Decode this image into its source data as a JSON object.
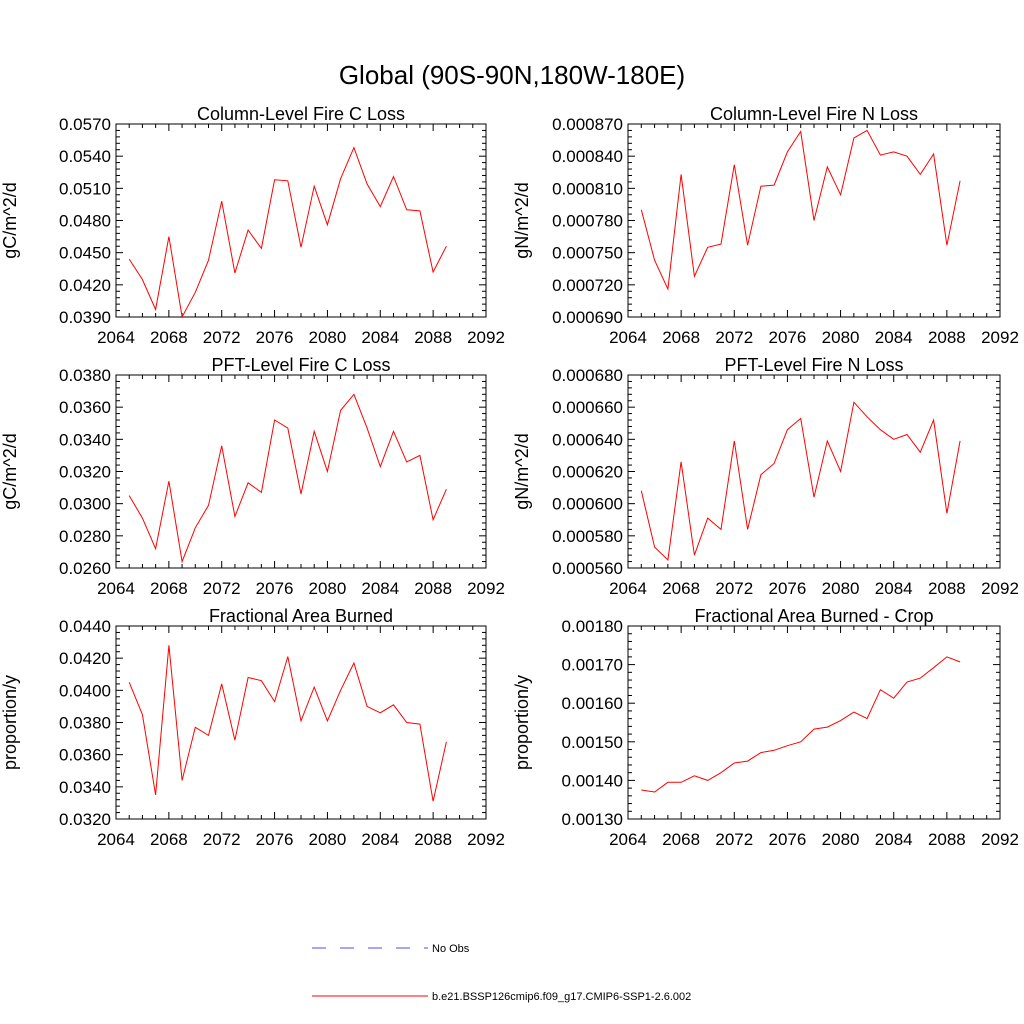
{
  "figure": {
    "title": "Global (90S-90N,180W-180E)"
  },
  "legend": {
    "items": [
      {
        "label": "No Obs",
        "color": "#4d4dff",
        "style": "dashed"
      },
      {
        "label": "b.e21.BSSP126cmip6.f09_g17.CMIP6-SSP1-2.6.002",
        "color": "#ff0000",
        "style": "solid"
      }
    ]
  },
  "chart_data": [
    {
      "type": "line",
      "title": "Column-Level Fire C Loss",
      "ylabel": "gC/m^2/d",
      "xlim": [
        2064,
        2092
      ],
      "xticks": [
        "2064",
        "2068",
        "2072",
        "2076",
        "2080",
        "2084",
        "2088",
        "2092"
      ],
      "ylim": [
        0.039,
        0.057
      ],
      "yticks": [
        "0.0390",
        "0.0420",
        "0.0450",
        "0.0480",
        "0.0510",
        "0.0540",
        "0.0570"
      ],
      "line_color": "#ff0000",
      "x": [
        2065,
        2066,
        2067,
        2068,
        2069,
        2070,
        2071,
        2072,
        2073,
        2074,
        2075,
        2076,
        2077,
        2078,
        2079,
        2080,
        2081,
        2082,
        2083,
        2084,
        2085,
        2086,
        2087,
        2088,
        2089
      ],
      "values": [
        0.0444,
        0.0425,
        0.0397,
        0.0465,
        0.039,
        0.0413,
        0.0443,
        0.0498,
        0.0431,
        0.0471,
        0.0454,
        0.0518,
        0.0517,
        0.0455,
        0.0512,
        0.0476,
        0.0519,
        0.0548,
        0.0514,
        0.0493,
        0.0521,
        0.049,
        0.0489,
        0.0432,
        0.0456
      ]
    },
    {
      "type": "line",
      "title": "Column-Level Fire N Loss",
      "ylabel": "gN/m^2/d",
      "xlim": [
        2064,
        2092
      ],
      "xticks": [
        "2064",
        "2068",
        "2072",
        "2076",
        "2080",
        "2084",
        "2088",
        "2092"
      ],
      "ylim": [
        0.00069,
        0.00087
      ],
      "yticks": [
        "0.000690",
        "0.000720",
        "0.000750",
        "0.000780",
        "0.000810",
        "0.000840",
        "0.000870"
      ],
      "line_color": "#ff0000",
      "x": [
        2065,
        2066,
        2067,
        2068,
        2069,
        2070,
        2071,
        2072,
        2073,
        2074,
        2075,
        2076,
        2077,
        2078,
        2079,
        2080,
        2081,
        2082,
        2083,
        2084,
        2085,
        2086,
        2087,
        2088,
        2089
      ],
      "values": [
        0.00079,
        0.000743,
        0.000716,
        0.000823,
        0.000728,
        0.000755,
        0.000758,
        0.000832,
        0.000757,
        0.000812,
        0.000813,
        0.000844,
        0.000863,
        0.00078,
        0.00083,
        0.000804,
        0.000857,
        0.000864,
        0.000841,
        0.000844,
        0.00084,
        0.000823,
        0.000842,
        0.000757,
        0.000817
      ]
    },
    {
      "type": "line",
      "title": "PFT-Level Fire C Loss",
      "ylabel": "gC/m^2/d",
      "xlim": [
        2064,
        2092
      ],
      "xticks": [
        "2064",
        "2068",
        "2072",
        "2076",
        "2080",
        "2084",
        "2088",
        "2092"
      ],
      "ylim": [
        0.026,
        0.038
      ],
      "yticks": [
        "0.0260",
        "0.0280",
        "0.0300",
        "0.0320",
        "0.0340",
        "0.0360",
        "0.0380"
      ],
      "line_color": "#ff0000",
      "x": [
        2065,
        2066,
        2067,
        2068,
        2069,
        2070,
        2071,
        2072,
        2073,
        2074,
        2075,
        2076,
        2077,
        2078,
        2079,
        2080,
        2081,
        2082,
        2083,
        2084,
        2085,
        2086,
        2087,
        2088,
        2089
      ],
      "values": [
        0.0305,
        0.0291,
        0.0272,
        0.0314,
        0.0264,
        0.0285,
        0.0299,
        0.0336,
        0.0292,
        0.0313,
        0.0307,
        0.0352,
        0.0347,
        0.0306,
        0.0345,
        0.032,
        0.0358,
        0.0368,
        0.0347,
        0.0323,
        0.0345,
        0.0326,
        0.033,
        0.029,
        0.0309
      ]
    },
    {
      "type": "line",
      "title": "PFT-Level Fire N Loss",
      "ylabel": "gN/m^2/d",
      "xlim": [
        2064,
        2092
      ],
      "xticks": [
        "2064",
        "2068",
        "2072",
        "2076",
        "2080",
        "2084",
        "2088",
        "2092"
      ],
      "ylim": [
        0.00056,
        0.00068
      ],
      "yticks": [
        "0.000560",
        "0.000580",
        "0.000600",
        "0.000620",
        "0.000640",
        "0.000660",
        "0.000680"
      ],
      "line_color": "#ff0000",
      "x": [
        2065,
        2066,
        2067,
        2068,
        2069,
        2070,
        2071,
        2072,
        2073,
        2074,
        2075,
        2076,
        2077,
        2078,
        2079,
        2080,
        2081,
        2082,
        2083,
        2084,
        2085,
        2086,
        2087,
        2088,
        2089
      ],
      "values": [
        0.000608,
        0.000573,
        0.000565,
        0.000626,
        0.000568,
        0.000591,
        0.000584,
        0.000639,
        0.000584,
        0.000618,
        0.000625,
        0.000646,
        0.000653,
        0.000604,
        0.000639,
        0.00062,
        0.000663,
        0.000654,
        0.000646,
        0.00064,
        0.000643,
        0.000632,
        0.000652,
        0.000594,
        0.000639
      ]
    },
    {
      "type": "line",
      "title": "Fractional Area Burned",
      "ylabel": "proportion/y",
      "xlim": [
        2064,
        2092
      ],
      "xticks": [
        "2064",
        "2068",
        "2072",
        "2076",
        "2080",
        "2084",
        "2088",
        "2092"
      ],
      "ylim": [
        0.032,
        0.044
      ],
      "yticks": [
        "0.0320",
        "0.0340",
        "0.0360",
        "0.0380",
        "0.0400",
        "0.0420",
        "0.0440"
      ],
      "line_color": "#ff0000",
      "x": [
        2065,
        2066,
        2067,
        2068,
        2069,
        2070,
        2071,
        2072,
        2073,
        2074,
        2075,
        2076,
        2077,
        2078,
        2079,
        2080,
        2081,
        2082,
        2083,
        2084,
        2085,
        2086,
        2087,
        2088,
        2089
      ],
      "values": [
        0.0405,
        0.0385,
        0.0335,
        0.0428,
        0.0344,
        0.0377,
        0.0372,
        0.0404,
        0.0369,
        0.0408,
        0.0406,
        0.0393,
        0.0421,
        0.0381,
        0.0402,
        0.0381,
        0.04,
        0.0417,
        0.039,
        0.0386,
        0.0391,
        0.038,
        0.0379,
        0.0331,
        0.0368
      ]
    },
    {
      "type": "line",
      "title": "Fractional Area Burned - Crop",
      "ylabel": "proportion/y",
      "xlim": [
        2064,
        2092
      ],
      "xticks": [
        "2064",
        "2068",
        "2072",
        "2076",
        "2080",
        "2084",
        "2088",
        "2092"
      ],
      "ylim": [
        0.0013,
        0.0018
      ],
      "yticks": [
        "0.00130",
        "0.00140",
        "0.00150",
        "0.00160",
        "0.00170",
        "0.00180"
      ],
      "line_color": "#ff0000",
      "x": [
        2065,
        2066,
        2067,
        2068,
        2069,
        2070,
        2071,
        2072,
        2073,
        2074,
        2075,
        2076,
        2077,
        2078,
        2079,
        2080,
        2081,
        2082,
        2083,
        2084,
        2085,
        2086,
        2087,
        2088,
        2089
      ],
      "values": [
        0.001375,
        0.00137,
        0.001395,
        0.001395,
        0.001412,
        0.0014,
        0.00142,
        0.001445,
        0.00145,
        0.001472,
        0.001478,
        0.00149,
        0.0015,
        0.001533,
        0.001538,
        0.001555,
        0.001577,
        0.00156,
        0.001635,
        0.001613,
        0.001655,
        0.001665,
        0.001692,
        0.00172,
        0.001707
      ]
    }
  ]
}
